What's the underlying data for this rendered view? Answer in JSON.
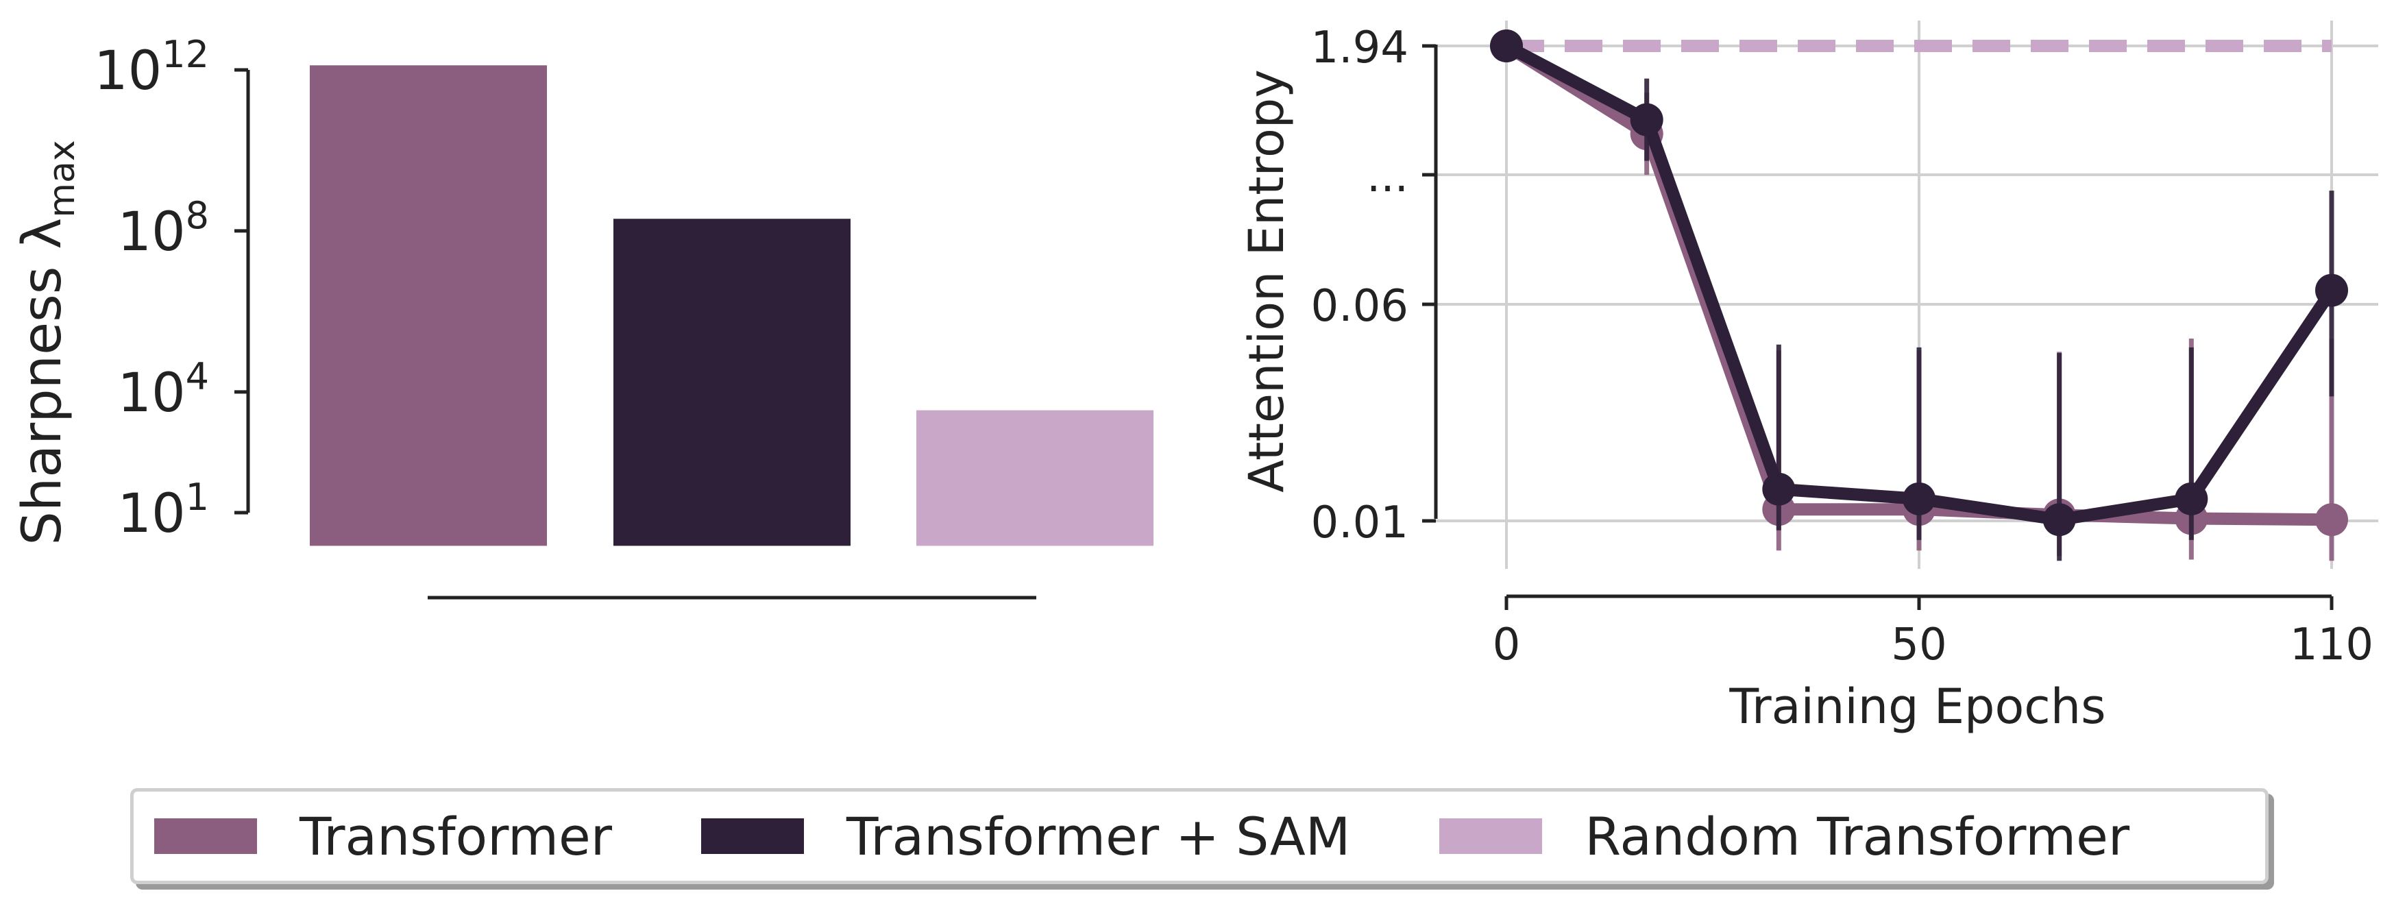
{
  "colors": {
    "transformer": "#8b5e7f",
    "transformer_sam": "#2e2039",
    "random_transformer": "#c9a7c8",
    "grid": "#d0d0d0",
    "axis": "#222222"
  },
  "legend": {
    "items": [
      {
        "label": "Transformer",
        "color": "#8b5e7f"
      },
      {
        "label": "Transformer + SAM",
        "color": "#2e2039"
      },
      {
        "label": "Random Transformer",
        "color": "#c9a7c8"
      }
    ]
  },
  "chart_data": [
    {
      "type": "bar",
      "ylabel": "Sharpness  λ",
      "ylabel_subscript": "max",
      "yscale": "log",
      "ylim": [
        10,
        1000000000000
      ],
      "yticks": [
        {
          "value": 10,
          "base": "10",
          "exp": "1"
        },
        {
          "value": 10000,
          "base": "10",
          "exp": "4"
        },
        {
          "value": 100000000,
          "base": "10",
          "exp": "8"
        },
        {
          "value": 1000000000000,
          "base": "10",
          "exp": "12"
        }
      ],
      "bar_floor": 1.5,
      "series": [
        {
          "name": "Transformer",
          "value": 1300000000000.0
        },
        {
          "name": "Transformer + SAM",
          "value": 200000000.0
        },
        {
          "name": "Random Transformer",
          "value": 3500.0
        }
      ],
      "grid": false
    },
    {
      "type": "line",
      "xlabel": "Training Epochs",
      "ylabel": "Attention Entropy",
      "xticks": [
        0,
        50,
        110
      ],
      "yticks": [
        "1.94",
        "...",
        "0.06",
        "0.01"
      ],
      "grid": true,
      "series": [
        {
          "name": "Transformer",
          "x": [
            0,
            17,
            33,
            50,
            67,
            83,
            100
          ],
          "y_level": [
            1.94,
            0.48,
            0.011,
            0.011,
            0.0105,
            0.0102,
            0.0101
          ],
          "err": [
            0.0,
            0.16,
            0.03,
            0.03,
            0.03,
            0.035,
            0.035
          ]
        },
        {
          "name": "Transformer + SAM",
          "x": [
            0,
            17,
            33,
            50,
            67,
            83,
            100
          ],
          "y_level": [
            1.94,
            0.6,
            0.013,
            0.012,
            0.0101,
            0.012,
            0.07
          ],
          "err": [
            0.0,
            0.2,
            0.03,
            0.03,
            0.03,
            0.03,
            0.14
          ]
        },
        {
          "name": "Random Transformer",
          "style": "dashed",
          "x": [
            0,
            100
          ],
          "y_level": [
            1.94,
            1.94
          ]
        }
      ]
    }
  ]
}
